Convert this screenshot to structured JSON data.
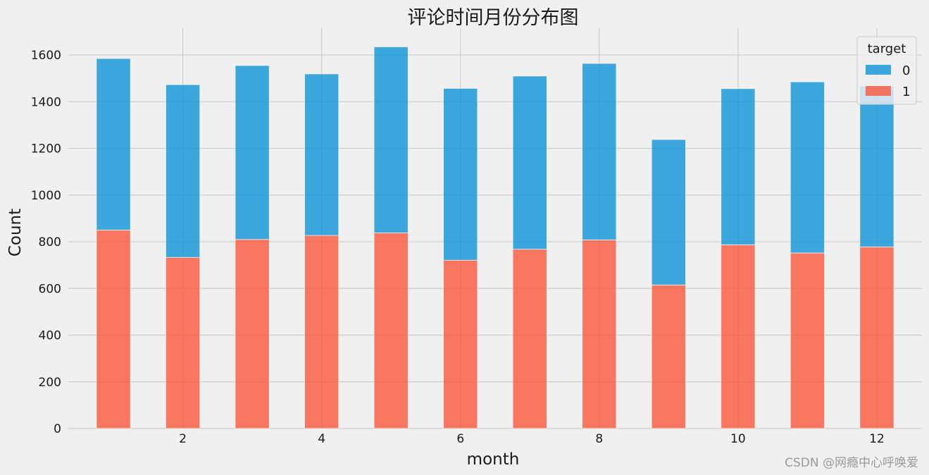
{
  "chart_data": {
    "type": "bar",
    "stacked": true,
    "title": "评论时间月份分布图",
    "xlabel": "month",
    "ylabel": "Count",
    "x": [
      1,
      2,
      3,
      4,
      5,
      6,
      7,
      8,
      9,
      10,
      11,
      12
    ],
    "xticks": [
      2,
      4,
      6,
      8,
      10,
      12
    ],
    "xlim": [
      0.35,
      12.65
    ],
    "yticks": [
      0,
      200,
      400,
      600,
      800,
      1000,
      1200,
      1400,
      1600
    ],
    "ylim": [
      0,
      1715
    ],
    "grid": true,
    "legend": {
      "title": "target",
      "position": "top-right"
    },
    "series": [
      {
        "name": "1",
        "color": "#fc4f30",
        "values": [
          850,
          733,
          810,
          827,
          838,
          721,
          768,
          808,
          615,
          787,
          752,
          778
        ]
      },
      {
        "name": "0",
        "color": "#008fd5",
        "values": [
          735,
          740,
          745,
          692,
          797,
          736,
          742,
          756,
          623,
          669,
          733,
          688
        ]
      }
    ]
  },
  "watermark": "CSDN @网瘾中心呼唤爱"
}
